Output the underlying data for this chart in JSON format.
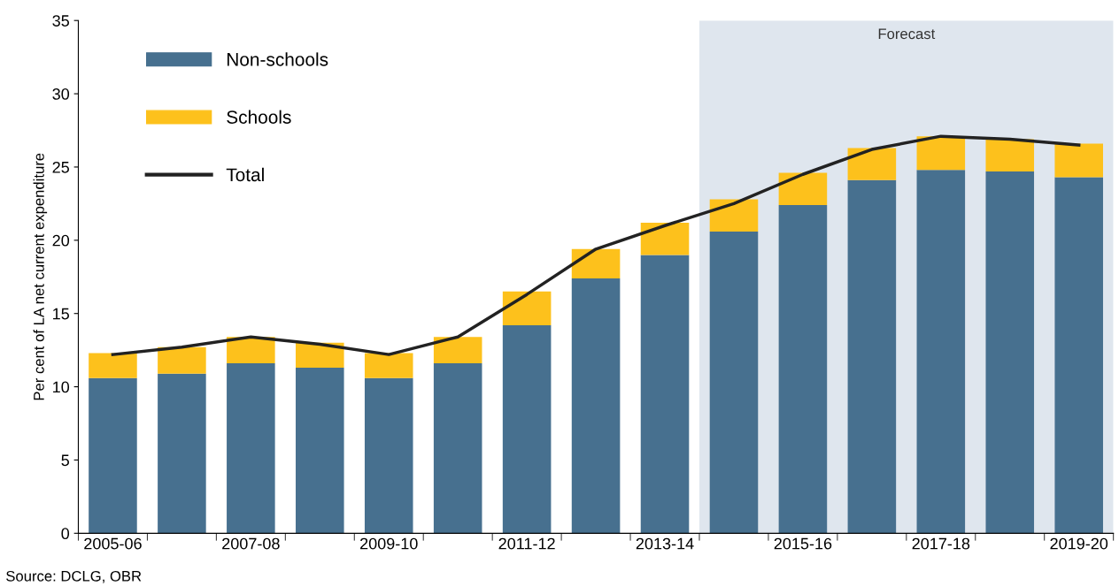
{
  "chart_data": {
    "type": "bar",
    "stacked": true,
    "ylabel": "Per cent of LA net current expenditure",
    "categories": [
      "2005-06",
      null,
      "2007-08",
      null,
      "2009-10",
      null,
      "2011-12",
      null,
      "2013-14",
      null,
      "2015-16",
      null,
      "2017-18",
      null,
      "2019-20"
    ],
    "series": [
      {
        "name": "Non-schools",
        "color": "#47708f",
        "values": [
          10.6,
          10.9,
          11.6,
          11.3,
          10.6,
          11.6,
          14.2,
          17.4,
          19.0,
          20.6,
          22.4,
          24.1,
          24.8,
          24.7,
          24.3
        ]
      },
      {
        "name": "Schools",
        "color": "#fdc11c",
        "values": [
          1.7,
          1.8,
          1.8,
          1.7,
          1.7,
          1.8,
          2.3,
          2.0,
          2.2,
          2.2,
          2.2,
          2.2,
          2.3,
          2.2,
          2.3
        ]
      },
      {
        "name": "Total",
        "type": "line",
        "color": "#222222",
        "values": [
          12.2,
          12.7,
          13.4,
          12.9,
          12.2,
          13.4,
          16.3,
          19.4,
          21.0,
          22.5,
          24.5,
          26.2,
          27.1,
          26.9,
          26.5
        ]
      }
    ],
    "ylim": [
      0,
      35
    ],
    "yticks": [
      0,
      5,
      10,
      15,
      20,
      25,
      30,
      35
    ],
    "annotations": [
      "Forecast",
      "Source: DCLG, OBR"
    ],
    "legend": "top left",
    "grid": false
  }
}
